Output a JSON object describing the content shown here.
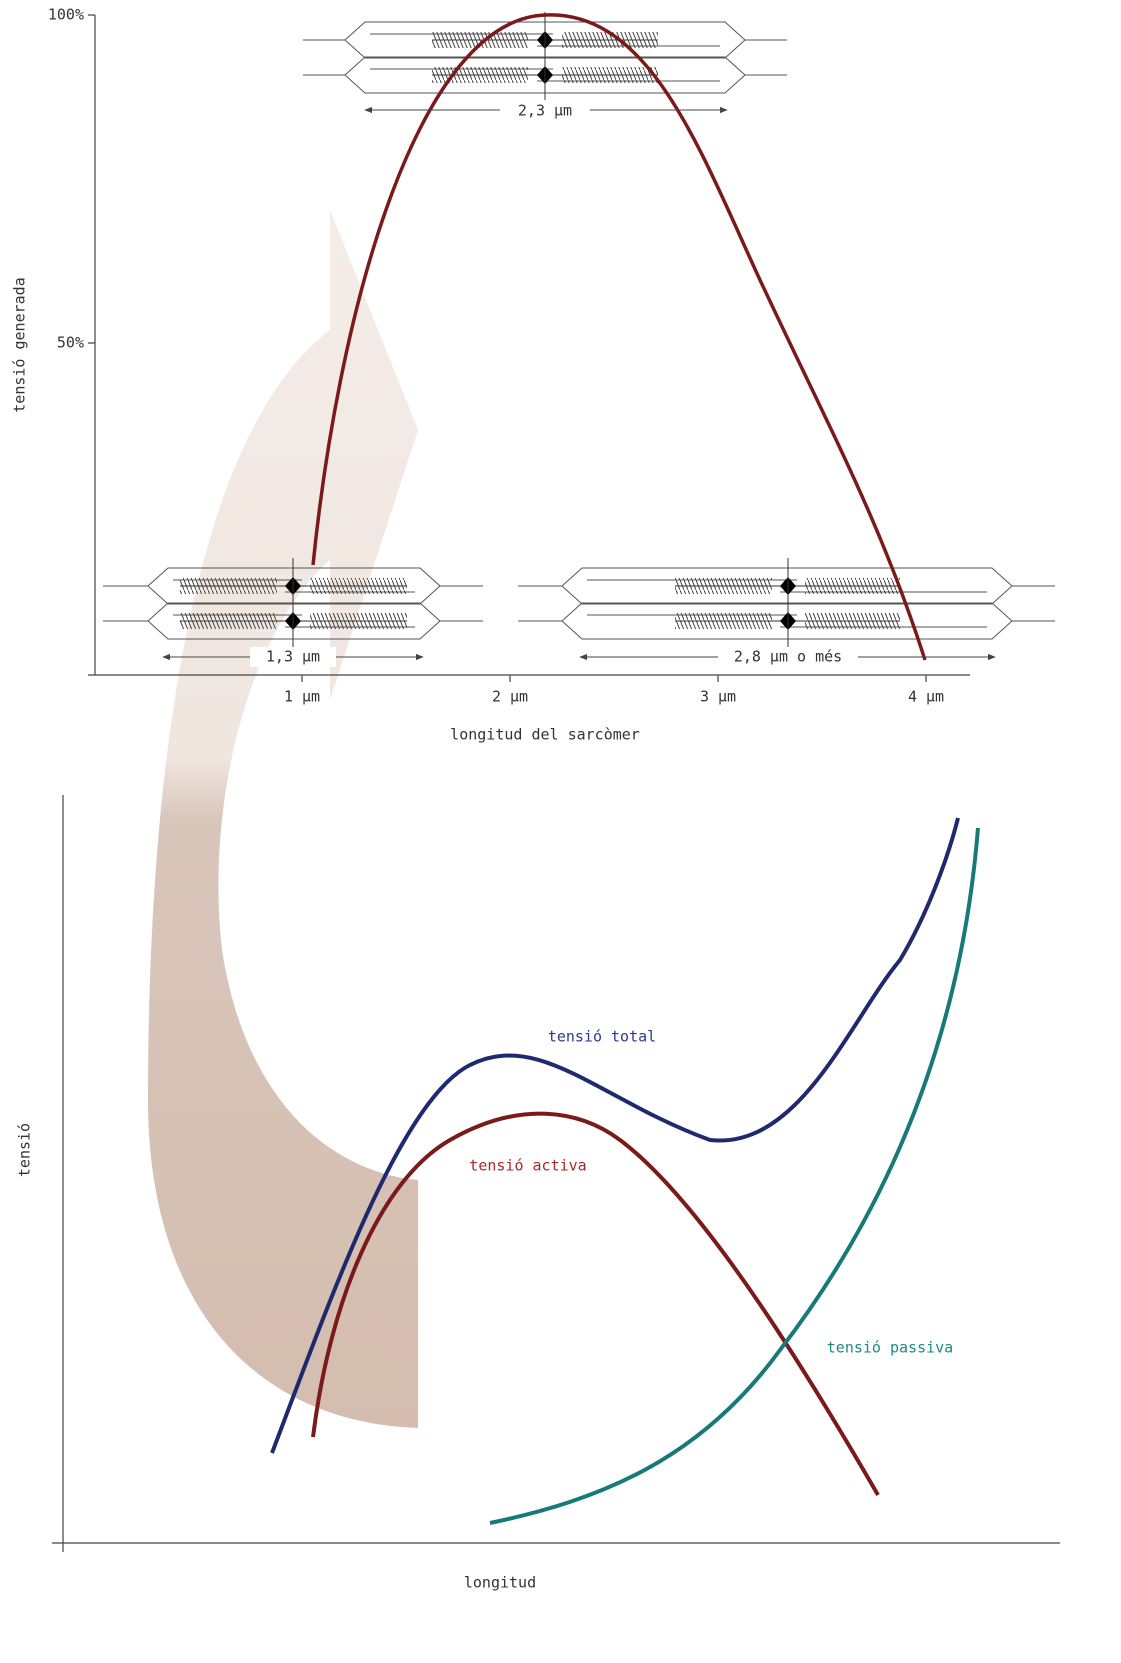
{
  "top_chart": {
    "y_axis_label": "tensió generada",
    "x_axis_label": "longitud del sarcòmer",
    "yticks": [
      "100%",
      "50%"
    ],
    "xticks": [
      "1 µm",
      "2 µm",
      "3 µm",
      "4 µm"
    ],
    "sarcomeres": [
      {
        "label": "2,3 µm"
      },
      {
        "label": "1,3 µm"
      },
      {
        "label": "2,8 µm o més"
      }
    ]
  },
  "bottom_chart": {
    "y_axis_label": "tensió",
    "x_axis_label": "longitud",
    "curves": [
      {
        "label": "tensió total"
      },
      {
        "label": "tensió activa"
      },
      {
        "label": "tensió passiva"
      }
    ]
  }
}
